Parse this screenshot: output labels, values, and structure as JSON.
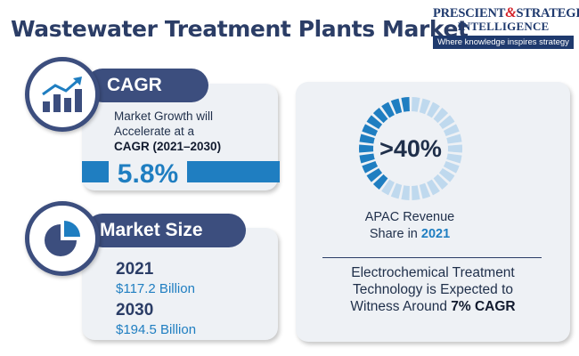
{
  "title": "Wastewater Treatment Plants Market",
  "brand": {
    "name_part1": "PRESCIENT",
    "amp": "&",
    "name_part2": "STRATEGIC",
    "name_line2": "INTELLIGENCE",
    "tagline": "Where knowledge inspires strategy"
  },
  "cagr": {
    "heading": "CAGR",
    "line1": "Market Growth will",
    "line2": "Accelerate at a",
    "line3": "CAGR (2021–2030)",
    "value": "5.8%",
    "icon": "growth-chart-icon"
  },
  "market_size": {
    "heading": "Market Size",
    "icon": "pie-chart-icon",
    "entries": [
      {
        "year": "2021",
        "value": "$117.2 Billion"
      },
      {
        "year": "2030",
        "value": "$194.5 Billion"
      }
    ]
  },
  "apac": {
    "share": ">40%",
    "share_fraction": 0.4,
    "label_line1": "APAC Revenue",
    "label_line2_prefix": "Share in ",
    "label_year": "2021"
  },
  "technology": {
    "line1": "Electrochemical Treatment",
    "line2": "Technology is Expected to",
    "line3_prefix": "Witness Around ",
    "line3_highlight": "7% CAGR"
  },
  "colors": {
    "navy": "#3c4e7e",
    "accent_blue": "#1f7ec1",
    "ring_light": "#bfd9ee",
    "card_bg": "#eef1f5",
    "brand_red": "#d32027"
  }
}
